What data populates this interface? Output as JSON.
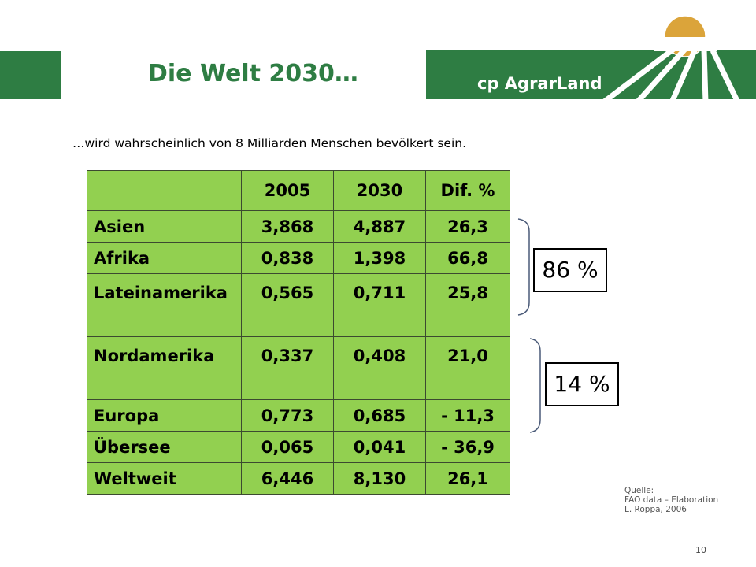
{
  "slide": {
    "title": "Die Welt 2030…",
    "subtitle": "…wird wahrscheinlich von 8 Milliarden Menschen bevölkert sein.",
    "page_number": "10"
  },
  "logo": {
    "text": "cp AgrarLand",
    "brand_green": "#2e7d43",
    "sun_color": "#dba43a"
  },
  "table": {
    "fill_color": "#92d050",
    "headers": [
      "",
      "2005",
      "2030",
      "Dif. %"
    ],
    "rows": [
      [
        "Asien",
        "3,868",
        "4,887",
        "26,3"
      ],
      [
        "Afrika",
        "0,838",
        "1,398",
        "66,8"
      ],
      [
        "Lateinamerika",
        "0,565",
        "0,711",
        "25,8"
      ],
      [
        "Nordamerika",
        "0,337",
        "0,408",
        "21,0"
      ],
      [
        "Europa",
        "0,773",
        "0,685",
        "- 11,3"
      ],
      [
        "Übersee",
        "0,065",
        "0,041",
        "- 36,9"
      ],
      [
        "Weltweit",
        "6,446",
        "8,130",
        "26,1"
      ]
    ]
  },
  "shares": {
    "group1": "86 %",
    "group2": "14 %"
  },
  "source": {
    "line1": "Quelle:",
    "line2": "FAO data – Elaboration",
    "line3": "L. Roppa, 2006"
  }
}
